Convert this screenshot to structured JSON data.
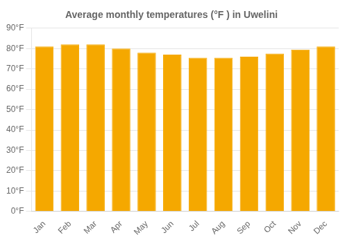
{
  "chart_data": {
    "type": "bar",
    "title": "Average monthly temperatures (°F ) in Uwelini",
    "categories": [
      "Jan",
      "Feb",
      "Mar",
      "Apr",
      "May",
      "Jun",
      "Jul",
      "Aug",
      "Sep",
      "Oct",
      "Nov",
      "Dec"
    ],
    "values": [
      81,
      82,
      82,
      80,
      78,
      77,
      75.5,
      75.5,
      76,
      77.5,
      79.5,
      81
    ],
    "color": "#F5A800",
    "ylim": [
      0,
      90
    ],
    "yticks": [
      {
        "value": 0,
        "label": "0°F"
      },
      {
        "value": 10,
        "label": "10°F"
      },
      {
        "value": 20,
        "label": "20°F"
      },
      {
        "value": 30,
        "label": "30°F"
      },
      {
        "value": 40,
        "label": "40°F"
      },
      {
        "value": 50,
        "label": "50°F"
      },
      {
        "value": 60,
        "label": "60°F"
      },
      {
        "value": 70,
        "label": "70°F"
      },
      {
        "value": 80,
        "label": "80°F"
      },
      {
        "value": 90,
        "label": "90°F"
      }
    ],
    "grid": true
  }
}
